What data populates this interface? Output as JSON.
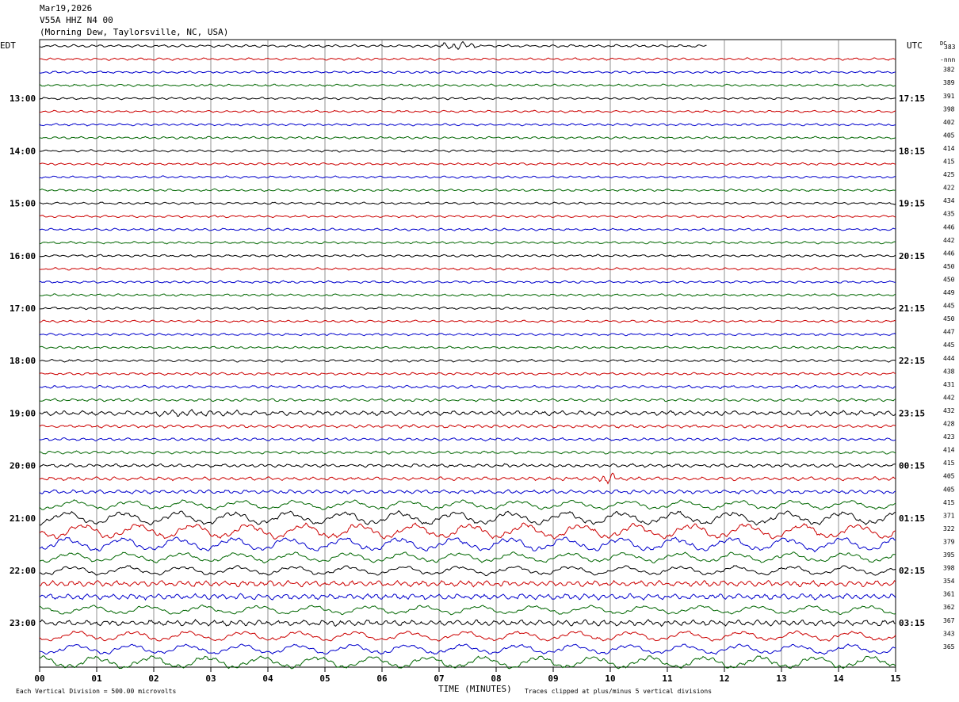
{
  "header": {
    "date": "Mar19,2026",
    "channel": "V55A HHZ N4 00",
    "station": "(Morning Dew, Taylorsville, NC, USA)"
  },
  "labels": {
    "left_tz": "EDT",
    "right_tz": "UTC",
    "dc_label": "DC",
    "first_dc": "383",
    "nnn": "-nnn"
  },
  "footer": {
    "scale": "Each Vertical Division =  500.00 microvolts",
    "x_title": "TIME (MINUTES)",
    "clip": "Traces clipped at plus/minus 5 vertical divisions"
  },
  "chart_data": {
    "type": "line",
    "title": "V55A HHZ N4 00",
    "xlabel": "TIME (MINUTES)",
    "xlim": [
      0,
      15
    ],
    "x_ticks": [
      "00",
      "01",
      "02",
      "03",
      "04",
      "05",
      "06",
      "07",
      "08",
      "09",
      "10",
      "11",
      "12",
      "13",
      "14",
      "15"
    ],
    "grid": true,
    "colors": [
      "#000000",
      "#cc0000",
      "#0000cc",
      "#006600"
    ],
    "rows": 48,
    "first_row_partial_minutes": 11.7,
    "left_hour_labels": [
      {
        "row": 4,
        "text": "13:00"
      },
      {
        "row": 8,
        "text": "14:00"
      },
      {
        "row": 12,
        "text": "15:00"
      },
      {
        "row": 16,
        "text": "16:00"
      },
      {
        "row": 20,
        "text": "17:00"
      },
      {
        "row": 24,
        "text": "18:00"
      },
      {
        "row": 28,
        "text": "19:00"
      },
      {
        "row": 32,
        "text": "20:00"
      },
      {
        "row": 36,
        "text": "21:00"
      },
      {
        "row": 40,
        "text": "22:00"
      },
      {
        "row": 44,
        "text": "23:00"
      }
    ],
    "right_hour_labels": [
      {
        "row": 4,
        "text": "17:15"
      },
      {
        "row": 8,
        "text": "18:15"
      },
      {
        "row": 12,
        "text": "19:15"
      },
      {
        "row": 16,
        "text": "20:15"
      },
      {
        "row": 20,
        "text": "21:15"
      },
      {
        "row": 24,
        "text": "22:15"
      },
      {
        "row": 28,
        "text": "23:15"
      },
      {
        "row": 32,
        "text": "00:15"
      },
      {
        "row": 36,
        "text": "01:15"
      },
      {
        "row": 40,
        "text": "02:15"
      },
      {
        "row": 44,
        "text": "03:15"
      }
    ],
    "dc_values": [
      "382",
      "389",
      "391",
      "398",
      "402",
      "405",
      "414",
      "415",
      "425",
      "422",
      "434",
      "435",
      "446",
      "442",
      "446",
      "450",
      "450",
      "449",
      "445",
      "450",
      "447",
      "445",
      "444",
      "438",
      "431",
      "442",
      "432",
      "428",
      "423",
      "414",
      "415",
      "405",
      "405",
      "415",
      "371",
      "322",
      "379",
      "395",
      "398",
      "354",
      "361",
      "362",
      "367",
      "343",
      "365"
    ],
    "amplitude": [
      0.9,
      0.8,
      0.8,
      0.8,
      0.8,
      0.8,
      0.8,
      0.8,
      0.8,
      0.8,
      0.8,
      0.8,
      0.8,
      0.8,
      0.8,
      0.8,
      0.8,
      0.8,
      0.8,
      0.8,
      0.8,
      0.8,
      0.8,
      0.8,
      0.9,
      0.9,
      1.0,
      1.0,
      1.6,
      1.1,
      1.0,
      1.0,
      1.2,
      1.2,
      1.4,
      2.2,
      3.2,
      3.6,
      3.3,
      2.4,
      2.2,
      2.0,
      2.0,
      2.1,
      2.0,
      2.4,
      2.4,
      3.0
    ]
  }
}
